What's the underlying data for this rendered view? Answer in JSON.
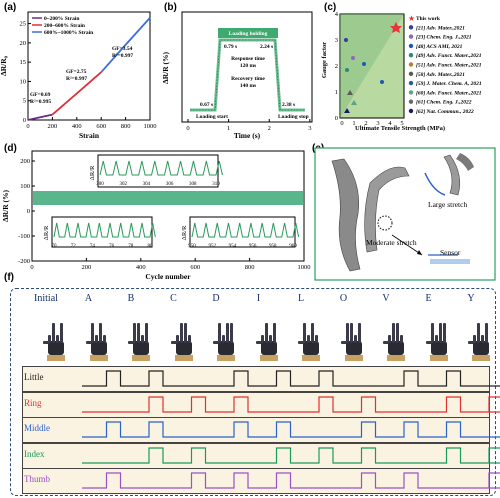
{
  "panels": {
    "a": {
      "label": "(a)",
      "xlabel": "Strain",
      "ylabel": "ΔR/R₀",
      "legend": [
        "0~200% Strain",
        "200~600% Strain",
        "600%~1000% Strain"
      ],
      "legend_colors": [
        "#6a2a8a",
        "#e0303a",
        "#3a6fd8"
      ],
      "annotations": [
        "GF=0.69",
        "R²=0.995",
        "GF=2.75",
        "R²=0.997",
        "GF=3.54",
        "R²=0.997"
      ],
      "xticks": [
        "0",
        "200",
        "400",
        "600",
        "800",
        "1000"
      ],
      "yticks": [
        "0",
        "5",
        "10",
        "15",
        "20",
        "25"
      ]
    },
    "b": {
      "label": "(b)",
      "xlabel": "Time (s)",
      "ylabel": "ΔR/R (%)",
      "annotations": [
        "Loading holding",
        "0.79 s",
        "2.24 s",
        "Response time",
        "120 ms",
        "Recovery time",
        "140 ms",
        "0.67 s",
        "2.38 s",
        "Loading start",
        "Loading stop"
      ],
      "xticks": [
        "0",
        "1",
        "2",
        "3"
      ]
    },
    "c": {
      "label": "(c)",
      "xlabel": "Ultimate Tensile Strength (MPa)",
      "ylabel": "Gauge factor",
      "xticks": [
        "0",
        "1",
        "2",
        "3",
        "4",
        "5"
      ],
      "yticks": [
        "0",
        "1",
        "2",
        "3",
        "4"
      ],
      "legend": [
        "This work",
        "[21] Adv. Mater.,2021",
        "[23] Chem. Eng. J.,2021",
        "[48] ACS AMI, 2021",
        "[49] Adv. Funct. Mater.,2021",
        "[51] Adv. Funct. Mater.,2021",
        "[58] Adv. Mater.,2021",
        "[59] J. Mater. Chem. A, 2021",
        "[60] Adv. Funct. Mater.,2021",
        "[61] Chem. Eng. J.,2022",
        "[62] Nat. Commun., 2022"
      ],
      "legend_colors": [
        "#e8333a",
        "#3a3a9a",
        "#8a6ab8",
        "#1a5ab8",
        "#2a8a7a",
        "#c07a2a",
        "#5a5a5a",
        "#2a5a9a",
        "#5aa08a",
        "#6a6a6a",
        "#1a1a6a"
      ]
    },
    "d": {
      "label": "(d)",
      "xlabel": "Cycle number",
      "ylabel": "ΔR/R (%)",
      "xticks": [
        "0",
        "200",
        "400",
        "600",
        "800",
        "1000"
      ],
      "yticks": [
        "-200",
        "-100",
        "0",
        "100",
        "200"
      ],
      "inset1_xticks": [
        "300",
        "302",
        "304",
        "306",
        "308",
        "310"
      ],
      "inset2_xticks": [
        "70",
        "72",
        "74",
        "76",
        "78",
        "80"
      ],
      "inset3_xticks": [
        "950",
        "952",
        "954",
        "956",
        "958",
        "960"
      ],
      "inset_ylabel": "ΔR/R"
    },
    "e": {
      "label": "(e)",
      "annotations": [
        "Large stretch",
        "Moderate stretch",
        "Sensor"
      ]
    },
    "f": {
      "label": "(f)",
      "gestures": [
        "Initial",
        "A",
        "B",
        "C",
        "D",
        "I",
        "L",
        "O",
        "V",
        "E",
        "Y"
      ],
      "fingers": [
        {
          "name": "Little",
          "color": "#222222"
        },
        {
          "name": "Ring",
          "color": "#e03030"
        },
        {
          "name": "Middle",
          "color": "#2a62c8"
        },
        {
          "name": "Index",
          "color": "#1a9a5a"
        },
        {
          "name": "Thumb",
          "color": "#9a50c8"
        }
      ]
    }
  },
  "chart_data": [
    {
      "type": "line",
      "xlabel": "Strain",
      "ylabel": "ΔR/R₀",
      "series": [
        {
          "name": "0~200% Strain",
          "x": [
            0,
            100,
            200
          ],
          "y": [
            0,
            0.7,
            1.4
          ]
        },
        {
          "name": "200~600% Strain",
          "x": [
            200,
            400,
            600
          ],
          "y": [
            1.4,
            6.9,
            12.4
          ]
        },
        {
          "name": "600%~1000% Strain",
          "x": [
            600,
            800,
            1000
          ],
          "y": [
            12.4,
            19.5,
            26.5
          ]
        }
      ],
      "xlim": [
        0,
        1000
      ],
      "ylim": [
        0,
        28
      ]
    }
  ]
}
